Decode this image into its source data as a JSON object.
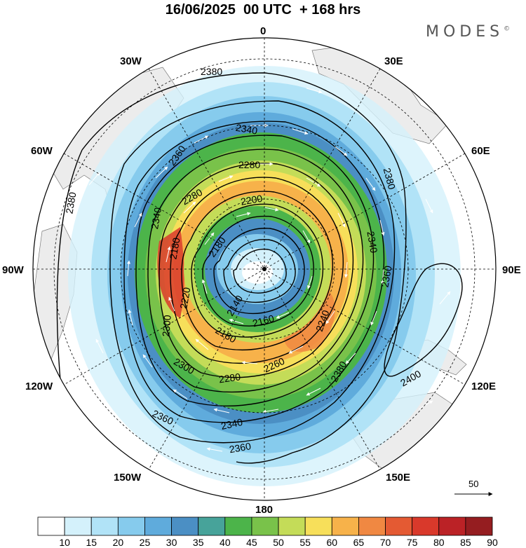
{
  "title": "16/06/2025  00 UTC  + 168 hrs",
  "brand": "MODES",
  "brand_mark": "©",
  "longitude_labels": {
    "deg0": "0",
    "e30": "30E",
    "e60": "60E",
    "e90": "90E",
    "e120": "120E",
    "e150": "150E",
    "deg180": "180",
    "w150": "150W",
    "w120": "120W",
    "w90": "90W",
    "w60": "60W",
    "w30": "30W"
  },
  "contour_labels": [
    "2380",
    "2360",
    "2340",
    "2280",
    "2200",
    "2180",
    "2140",
    "2160",
    "2240",
    "2260",
    "2300",
    "2220",
    "2400"
  ],
  "vector_reference": {
    "value": "50"
  },
  "colorbar": {
    "ticks": [
      "10",
      "15",
      "20",
      "25",
      "30",
      "35",
      "40",
      "45",
      "50",
      "55",
      "60",
      "65",
      "70",
      "75",
      "80",
      "85",
      "90"
    ],
    "colors": [
      "#ffffff",
      "#d4f1fb",
      "#b1e3f7",
      "#86cbed",
      "#5fabdc",
      "#4b8fc4",
      "#47a39a",
      "#4cb44a",
      "#79c24a",
      "#c4dc58",
      "#f7df5a",
      "#f7b24a",
      "#f08842",
      "#e45a33",
      "#d9392b",
      "#bb2226",
      "#951d20"
    ]
  },
  "colors": {
    "land": "#ececec",
    "coast": "#7a7a7a",
    "contour": "#000000",
    "vector": "#ffffff"
  }
}
